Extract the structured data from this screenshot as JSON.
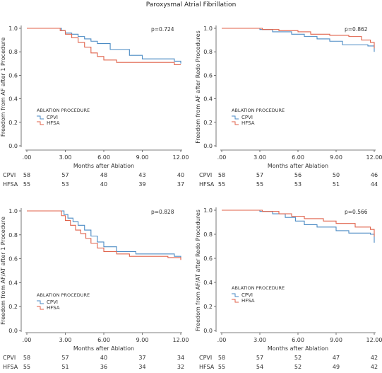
{
  "figure_title": "Paroxysmal Atrial Fibrillation",
  "colors": {
    "CPVI": "#4a8ac4",
    "HFSA": "#e0624a"
  },
  "chart_data": [
    {
      "type": "line",
      "ylabel": "Freedom from AF after 1 Procedure",
      "xlabel": "Months after Ablation",
      "xlim": [
        0,
        12
      ],
      "ylim": [
        0,
        1
      ],
      "xticks": [
        ".00",
        "3.00",
        "6.00",
        "9.00",
        "12.00"
      ],
      "yticks": [
        "0.0",
        "0.2",
        "0.4",
        "0.6",
        "0.8",
        "1.0"
      ],
      "p_value": "p=0.724",
      "legend_title": "ABLATION PROCEDURE",
      "legend_position": "lower-left",
      "series": [
        {
          "name": "CPVI",
          "x": [
            0,
            2.7,
            3.0,
            3.5,
            4.0,
            4.5,
            5.0,
            5.5,
            6.5,
            8.0,
            9.0,
            11.5,
            12.0
          ],
          "y": [
            1.0,
            0.98,
            0.96,
            0.95,
            0.93,
            0.91,
            0.89,
            0.87,
            0.82,
            0.77,
            0.74,
            0.72,
            0.7
          ]
        },
        {
          "name": "HFSA",
          "x": [
            0,
            2.6,
            3.0,
            3.5,
            4.0,
            4.5,
            5.0,
            5.5,
            6.0,
            7.0,
            11.5,
            12.0
          ],
          "y": [
            1.0,
            0.98,
            0.95,
            0.92,
            0.88,
            0.84,
            0.79,
            0.76,
            0.73,
            0.71,
            0.69,
            0.69
          ]
        }
      ],
      "risk_table": {
        "columns": [
          "58",
          "57",
          "48",
          "43",
          "40"
        ],
        "columns2": [
          "55",
          "53",
          "40",
          "39",
          "37"
        ]
      }
    },
    {
      "type": "line",
      "ylabel": "Freedom from AF after Redo Procedures",
      "xlabel": "Months after Ablation",
      "xlim": [
        0,
        12
      ],
      "ylim": [
        0,
        1
      ],
      "xticks": [
        ".00",
        "3.00",
        "6.00",
        "9.00",
        "12.00"
      ],
      "yticks": [
        "0.0",
        "0.2",
        "0.4",
        "0.6",
        "0.8",
        "1.0"
      ],
      "p_value": "p=0.862",
      "legend_title": "ABLATION PROCEDURE",
      "legend_position": "lower-left",
      "series": [
        {
          "name": "CPVI",
          "x": [
            0,
            3.0,
            4.0,
            5.5,
            6.5,
            7.5,
            8.5,
            9.5,
            11.5,
            12.0
          ],
          "y": [
            1.0,
            0.99,
            0.97,
            0.95,
            0.93,
            0.91,
            0.89,
            0.86,
            0.85,
            0.8
          ]
        },
        {
          "name": "HFSA",
          "x": [
            0,
            3.2,
            4.5,
            6.0,
            7.0,
            8.5,
            10.0,
            11.0,
            11.7,
            12.0
          ],
          "y": [
            1.0,
            0.99,
            0.98,
            0.97,
            0.95,
            0.94,
            0.93,
            0.9,
            0.88,
            0.83
          ]
        }
      ],
      "risk_table": {
        "columns": [
          "58",
          "57",
          "56",
          "50",
          "46"
        ],
        "columns2": [
          "55",
          "55",
          "53",
          "51",
          "44"
        ]
      }
    },
    {
      "type": "line",
      "ylabel": "Freedom from AF/AT after 1 Procedure",
      "xlabel": "Months after Ablation",
      "xlim": [
        0,
        12
      ],
      "ylim": [
        0,
        1
      ],
      "xticks": [
        ".00",
        "3.00",
        "6.00",
        "9.00",
        "12.00"
      ],
      "yticks": [
        "0.0",
        "0.2",
        "0.4",
        "0.6",
        "0.8",
        "1.0"
      ],
      "p_value": "p=0.828",
      "legend_title": "ABLATION PROCEDURE",
      "legend_position": "lower-left",
      "series": [
        {
          "name": "CPVI",
          "x": [
            0,
            2.9,
            3.2,
            3.6,
            4.0,
            4.5,
            5.0,
            5.5,
            6.0,
            7.0,
            8.5,
            11.5,
            12.0
          ],
          "y": [
            1.0,
            0.97,
            0.94,
            0.91,
            0.88,
            0.84,
            0.79,
            0.74,
            0.7,
            0.66,
            0.64,
            0.62,
            0.61
          ]
        },
        {
          "name": "HFSA",
          "x": [
            0,
            2.7,
            3.0,
            3.4,
            3.8,
            4.2,
            4.6,
            5.0,
            5.5,
            6.0,
            7.0,
            8.0,
            11.0,
            12.0
          ],
          "y": [
            1.0,
            0.96,
            0.92,
            0.88,
            0.84,
            0.81,
            0.77,
            0.73,
            0.69,
            0.66,
            0.64,
            0.62,
            0.61,
            0.59
          ]
        }
      ],
      "risk_table": {
        "columns": [
          "58",
          "57",
          "40",
          "37",
          "34"
        ],
        "columns2": [
          "55",
          "51",
          "36",
          "34",
          "32"
        ]
      }
    },
    {
      "type": "line",
      "ylabel": "Freedom from AF/AT after Redo Procedures",
      "xlabel": "Months after Ablation",
      "xlim": [
        0,
        12
      ],
      "ylim": [
        0,
        1
      ],
      "xticks": [
        ".00",
        "3.00",
        "6.00",
        "9.00",
        "12.00"
      ],
      "yticks": [
        "0.0",
        "0.2",
        "0.4",
        "0.6",
        "0.8",
        "1.0"
      ],
      "p_value": "p=0.566",
      "legend_title": "ABLATION PROCEDURE",
      "legend_position": "lower-left",
      "series": [
        {
          "name": "CPVI",
          "x": [
            0,
            3.0,
            4.0,
            5.0,
            5.8,
            6.5,
            7.5,
            9.0,
            10.0,
            11.7,
            12.0
          ],
          "y": [
            1.0,
            0.99,
            0.97,
            0.94,
            0.91,
            0.88,
            0.86,
            0.83,
            0.81,
            0.8,
            0.73
          ]
        },
        {
          "name": "HFSA",
          "x": [
            0,
            3.2,
            4.5,
            5.5,
            6.5,
            8.0,
            9.0,
            10.5,
            11.7,
            12.0
          ],
          "y": [
            1.0,
            0.99,
            0.97,
            0.95,
            0.93,
            0.91,
            0.89,
            0.86,
            0.84,
            0.78
          ]
        }
      ],
      "risk_table": {
        "columns": [
          "58",
          "57",
          "52",
          "47",
          "42"
        ],
        "columns2": [
          "55",
          "54",
          "52",
          "49",
          "42"
        ]
      }
    }
  ],
  "risk_labels": [
    "CPVI",
    "HFSA"
  ]
}
